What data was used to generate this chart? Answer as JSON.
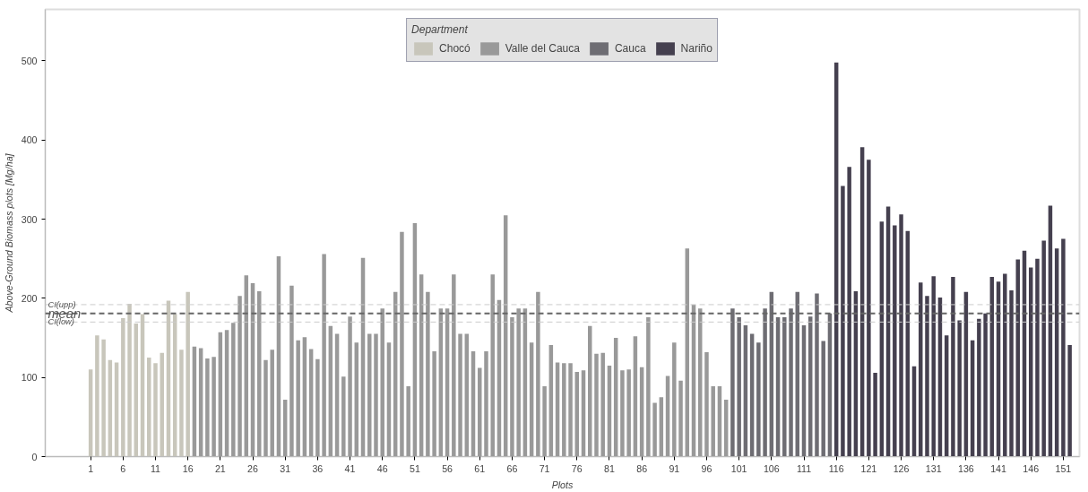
{
  "chart_data": {
    "type": "bar",
    "xlabel": "Plots",
    "ylabel": "Above-Ground Biomass plots [Mg/ha]",
    "legend_title": "Department",
    "legend": "top",
    "xlim": [
      -6,
      153.5
    ],
    "xticks": [
      1,
      6,
      11,
      16,
      21,
      26,
      31,
      36,
      41,
      46,
      51,
      56,
      61,
      66,
      71,
      76,
      81,
      86,
      91,
      96,
      101,
      106,
      111,
      116,
      121,
      126,
      131,
      136,
      141,
      146,
      151
    ],
    "ylim": [
      0,
      565
    ],
    "yticks": [
      0,
      100,
      200,
      300,
      400,
      500
    ],
    "grid": false,
    "series": [
      {
        "name": "Chocó",
        "color": "#c8c6bb",
        "x": [
          1,
          2,
          3,
          4,
          5,
          6,
          7,
          8,
          9,
          10,
          11,
          12,
          13,
          14,
          15,
          16
        ],
        "values": [
          110,
          153,
          148,
          122,
          119,
          175,
          193,
          168,
          180,
          125,
          118,
          131,
          197,
          180,
          135,
          208
        ]
      },
      {
        "name": "Valle del Cauca",
        "color": "#999999",
        "x": [
          17,
          18,
          19,
          20,
          21,
          22,
          23,
          24,
          25,
          26,
          27,
          28,
          29,
          30,
          31,
          32,
          33,
          34,
          35,
          36,
          37,
          38,
          39,
          40,
          41,
          42,
          43,
          44,
          45,
          46,
          47,
          48,
          49,
          50,
          51,
          52,
          53,
          54,
          55,
          56,
          57,
          58,
          59,
          60,
          61,
          62,
          63,
          64,
          65,
          66,
          67,
          68,
          69,
          70,
          71,
          72,
          73,
          74,
          75,
          76,
          77,
          78,
          79,
          80,
          81,
          82,
          83,
          84,
          85,
          86,
          87,
          88,
          89,
          90,
          91,
          92,
          93,
          94,
          95,
          96,
          97,
          98,
          99
        ],
        "values": [
          139,
          137,
          124,
          126,
          157,
          160,
          169,
          203,
          229,
          219,
          209,
          122,
          135,
          253,
          72,
          216,
          147,
          151,
          136,
          123,
          256,
          165,
          155,
          101,
          177,
          144,
          251,
          155,
          155,
          187,
          144,
          208,
          284,
          89,
          295,
          230,
          208,
          133,
          187,
          187,
          230,
          155,
          155,
          133,
          112,
          133,
          230,
          198,
          305,
          176,
          187,
          187,
          144,
          208,
          89,
          141,
          119,
          118,
          118,
          107,
          109,
          165,
          130,
          131,
          115,
          150,
          109,
          110,
          152,
          113,
          176,
          68,
          75,
          102,
          144,
          96,
          263,
          192,
          187,
          132,
          89,
          89,
          72
        ]
      },
      {
        "name": "Cauca",
        "color": "#6e6d73",
        "x": [
          100,
          101,
          102,
          103,
          104,
          105,
          106,
          107,
          108,
          109,
          110,
          111,
          112,
          113,
          114,
          115
        ],
        "values": [
          187,
          176,
          166,
          155,
          144,
          187,
          208,
          176,
          176,
          187,
          208,
          166,
          177,
          206,
          146,
          181
        ]
      },
      {
        "name": "Nariño",
        "color": "#45404f",
        "x": [
          116,
          117,
          118,
          119,
          120,
          121,
          122,
          123,
          124,
          125,
          126,
          127,
          128,
          129,
          130,
          131,
          132,
          133,
          134,
          135,
          136,
          137,
          138,
          139,
          140,
          141,
          142,
          143,
          144,
          145,
          146,
          147,
          148,
          149,
          150,
          151,
          152
        ],
        "values": [
          498,
          342,
          366,
          209,
          391,
          375,
          106,
          297,
          316,
          292,
          306,
          285,
          114,
          220,
          203,
          228,
          201,
          153,
          227,
          172,
          208,
          147,
          174,
          181,
          227,
          221,
          231,
          210,
          249,
          260,
          239,
          250,
          273,
          317,
          263,
          275,
          141
        ]
      }
    ],
    "ref_lines": [
      {
        "axis": "y",
        "value": 192,
        "label": "CI(upp)",
        "color": "#cccccc",
        "line_style": "dashed"
      },
      {
        "axis": "y",
        "value": 181,
        "label": "mean",
        "color": "#666666",
        "line_style": "dashed"
      },
      {
        "axis": "y",
        "value": 170,
        "label": "CI(low)",
        "color": "#cccccc",
        "line_style": "dashed"
      }
    ]
  }
}
